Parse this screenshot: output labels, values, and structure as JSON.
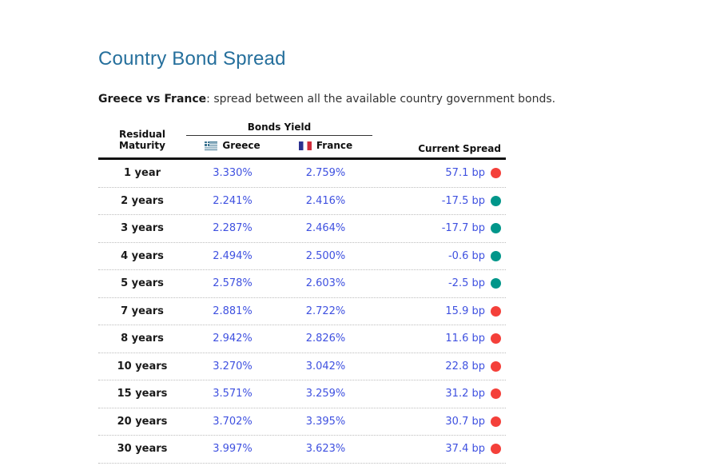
{
  "page": {
    "title": "Country Bond Spread",
    "description_bold": "Greece vs France",
    "description_rest": ": spread between all the available country government bonds."
  },
  "table": {
    "headers": {
      "residual_line1": "Residual",
      "residual_line2": "Maturity",
      "group": "Bonds Yield",
      "country_a": "Greece",
      "country_b": "France",
      "spread": "Current Spread"
    },
    "rows": [
      {
        "maturity": "1 year",
        "greece": "3.330%",
        "france": "2.759%",
        "spread": "57.1 bp",
        "dot": "red"
      },
      {
        "maturity": "2 years",
        "greece": "2.241%",
        "france": "2.416%",
        "spread": "-17.5 bp",
        "dot": "teal"
      },
      {
        "maturity": "3 years",
        "greece": "2.287%",
        "france": "2.464%",
        "spread": "-17.7 bp",
        "dot": "teal"
      },
      {
        "maturity": "4 years",
        "greece": "2.494%",
        "france": "2.500%",
        "spread": "-0.6 bp",
        "dot": "teal"
      },
      {
        "maturity": "5 years",
        "greece": "2.578%",
        "france": "2.603%",
        "spread": "-2.5 bp",
        "dot": "teal"
      },
      {
        "maturity": "7 years",
        "greece": "2.881%",
        "france": "2.722%",
        "spread": "15.9 bp",
        "dot": "red"
      },
      {
        "maturity": "8 years",
        "greece": "2.942%",
        "france": "2.826%",
        "spread": "11.6 bp",
        "dot": "red"
      },
      {
        "maturity": "10 years",
        "greece": "3.270%",
        "france": "3.042%",
        "spread": "22.8 bp",
        "dot": "red"
      },
      {
        "maturity": "15 years",
        "greece": "3.571%",
        "france": "3.259%",
        "spread": "31.2 bp",
        "dot": "red"
      },
      {
        "maturity": "20 years",
        "greece": "3.702%",
        "france": "3.395%",
        "spread": "30.7 bp",
        "dot": "red"
      },
      {
        "maturity": "30 years",
        "greece": "3.997%",
        "france": "3.623%",
        "spread": "37.4 bp",
        "dot": "red"
      }
    ]
  },
  "icons": {
    "greece_flag": "greece-flag-icon",
    "france_flag": "france-flag-icon",
    "positive_spread_dot": "red-dot-icon",
    "negative_spread_dot": "teal-dot-icon"
  },
  "colors": {
    "title": "#256f9c",
    "value_link": "#3f51e0",
    "dot_red": "#f4403a",
    "dot_teal": "#00968a"
  }
}
